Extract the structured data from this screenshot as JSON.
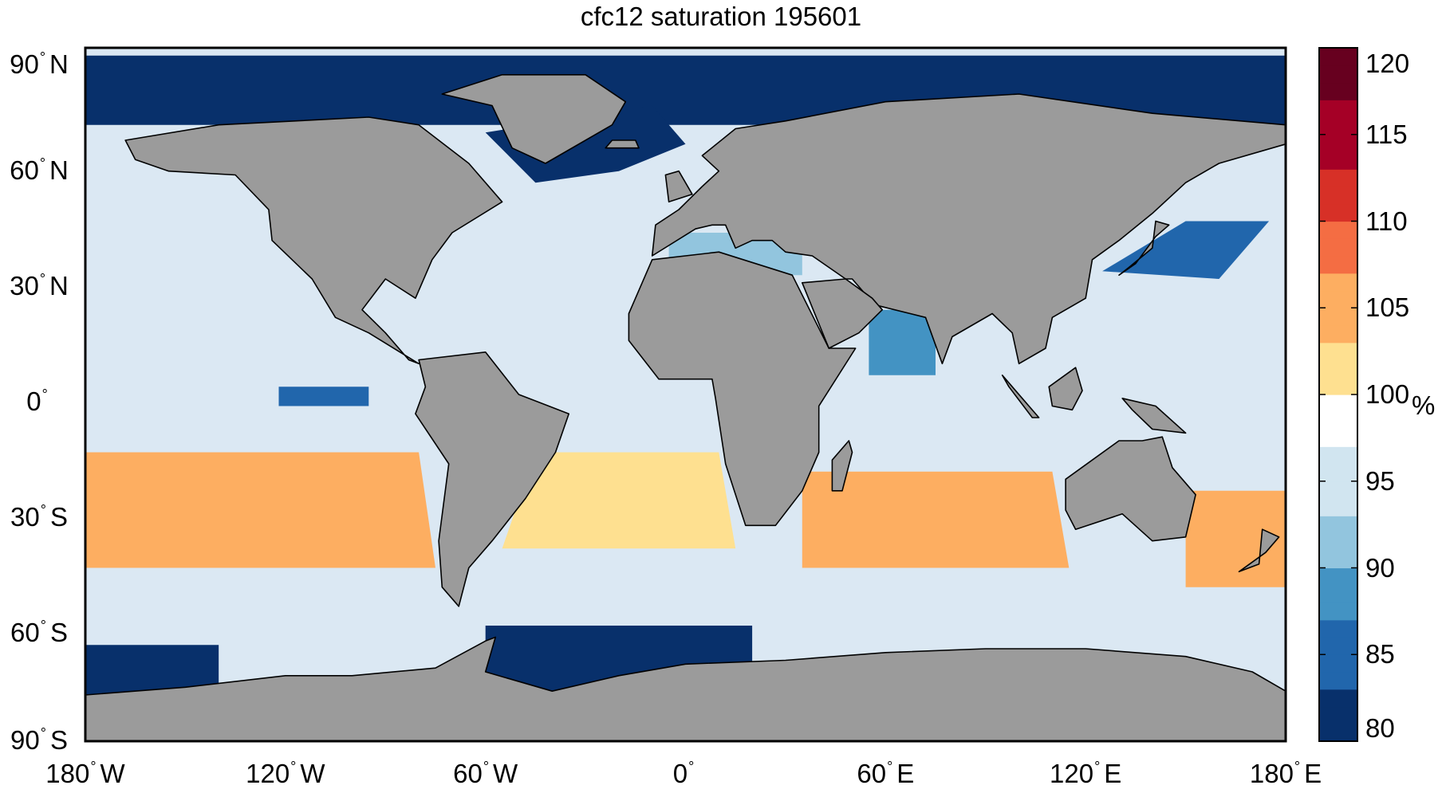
{
  "title": "cfc12 saturation 195601",
  "map": {
    "ocean_base": "#dbe8f3",
    "land": "#9b9b9b",
    "y_ticks": [
      {
        "lat": 90,
        "label": "90",
        "hemi": "N"
      },
      {
        "lat": 60,
        "label": "60",
        "hemi": "N"
      },
      {
        "lat": 30,
        "label": "30",
        "hemi": "N"
      },
      {
        "lat": 0,
        "label": "0",
        "hemi": ""
      },
      {
        "lat": -30,
        "label": "30",
        "hemi": "S"
      },
      {
        "lat": -60,
        "label": "60",
        "hemi": "S"
      },
      {
        "lat": -90,
        "label": "90",
        "hemi": "S"
      }
    ],
    "x_ticks": [
      {
        "lon": -180,
        "label": "180",
        "hemi": "W"
      },
      {
        "lon": -120,
        "label": "120",
        "hemi": "W"
      },
      {
        "lon": -60,
        "label": "60",
        "hemi": "W"
      },
      {
        "lon": 0,
        "label": "0",
        "hemi": ""
      },
      {
        "lon": 60,
        "label": "60",
        "hemi": "E"
      },
      {
        "lon": 120,
        "label": "120",
        "hemi": "E"
      },
      {
        "lon": 180,
        "label": "180",
        "hemi": "E"
      }
    ]
  },
  "colorbar": {
    "min": 80,
    "max": 120,
    "unit": "%",
    "ticks": [
      120,
      115,
      110,
      105,
      100,
      95,
      90,
      85,
      80
    ],
    "colors_low_to_high": [
      "#08306b",
      "#2166ac",
      "#4393c3",
      "#92c5de",
      "#d1e5f0",
      "#ffffff",
      "#fee090",
      "#fdae61",
      "#f46d43",
      "#d73027",
      "#a50026",
      "#67001f"
    ]
  },
  "regions": [
    {
      "name": "arctic-ocean",
      "value": 80,
      "polygon": [
        [
          -180,
          88
        ],
        [
          180,
          88
        ],
        [
          180,
          70
        ],
        [
          -180,
          70
        ]
      ]
    },
    {
      "name": "north-atlantic-deep",
      "value": 82,
      "polygon": [
        [
          -60,
          68
        ],
        [
          -10,
          75
        ],
        [
          0,
          65
        ],
        [
          -20,
          58
        ],
        [
          -45,
          55
        ]
      ]
    },
    {
      "name": "north-pacific-west",
      "value": 86,
      "polygon": [
        [
          125,
          32
        ],
        [
          150,
          45
        ],
        [
          175,
          45
        ],
        [
          160,
          30
        ]
      ]
    },
    {
      "name": "equatorial-pacific-low",
      "value": 84,
      "polygon": [
        [
          -122,
          2
        ],
        [
          -95,
          2
        ],
        [
          -95,
          -3
        ],
        [
          -122,
          -3
        ]
      ]
    },
    {
      "name": "south-pacific-high",
      "value": 104,
      "polygon": [
        [
          -180,
          -15
        ],
        [
          -80,
          -15
        ],
        [
          -75,
          -45
        ],
        [
          -180,
          -45
        ]
      ]
    },
    {
      "name": "south-atlantic-high",
      "value": 103,
      "polygon": [
        [
          -45,
          -15
        ],
        [
          10,
          -15
        ],
        [
          15,
          -40
        ],
        [
          -55,
          -40
        ]
      ]
    },
    {
      "name": "south-indian-high",
      "value": 104,
      "polygon": [
        [
          35,
          -20
        ],
        [
          110,
          -20
        ],
        [
          115,
          -45
        ],
        [
          35,
          -45
        ]
      ]
    },
    {
      "name": "tasman-high",
      "value": 105,
      "polygon": [
        [
          150,
          -25
        ],
        [
          180,
          -25
        ],
        [
          180,
          -50
        ],
        [
          150,
          -50
        ]
      ]
    },
    {
      "name": "weddell-sea",
      "value": 80,
      "polygon": [
        [
          -60,
          -60
        ],
        [
          20,
          -60
        ],
        [
          20,
          -78
        ],
        [
          -60,
          -78
        ]
      ]
    },
    {
      "name": "ross-sea",
      "value": 81,
      "polygon": [
        [
          -180,
          -65
        ],
        [
          -140,
          -65
        ],
        [
          -140,
          -80
        ],
        [
          -180,
          -80
        ]
      ]
    },
    {
      "name": "arabian-sea",
      "value": 88,
      "polygon": [
        [
          55,
          22
        ],
        [
          75,
          22
        ],
        [
          75,
          5
        ],
        [
          55,
          5
        ]
      ]
    },
    {
      "name": "mediterranean",
      "value": 91,
      "polygon": [
        [
          -5,
          42
        ],
        [
          35,
          42
        ],
        [
          35,
          31
        ],
        [
          -5,
          31
        ]
      ]
    }
  ],
  "land": [
    {
      "name": "north-america",
      "polygon": [
        [
          -168,
          66
        ],
        [
          -140,
          70
        ],
        [
          -95,
          72
        ],
        [
          -80,
          70
        ],
        [
          -65,
          60
        ],
        [
          -55,
          50
        ],
        [
          -70,
          42
        ],
        [
          -76,
          35
        ],
        [
          -81,
          25
        ],
        [
          -90,
          30
        ],
        [
          -97,
          22
        ],
        [
          -90,
          16
        ],
        [
          -83,
          9
        ],
        [
          -80,
          8
        ],
        [
          -95,
          16
        ],
        [
          -105,
          20
        ],
        [
          -112,
          30
        ],
        [
          -124,
          40
        ],
        [
          -125,
          48
        ],
        [
          -135,
          57
        ],
        [
          -155,
          58
        ],
        [
          -165,
          61
        ]
      ]
    },
    {
      "name": "greenland",
      "polygon": [
        [
          -73,
          78
        ],
        [
          -55,
          83
        ],
        [
          -30,
          83
        ],
        [
          -18,
          76
        ],
        [
          -22,
          70
        ],
        [
          -42,
          60
        ],
        [
          -52,
          64
        ],
        [
          -58,
          75
        ]
      ]
    },
    {
      "name": "south-america",
      "polygon": [
        [
          -80,
          9
        ],
        [
          -60,
          11
        ],
        [
          -50,
          0
        ],
        [
          -35,
          -5
        ],
        [
          -39,
          -15
        ],
        [
          -48,
          -27
        ],
        [
          -58,
          -38
        ],
        [
          -65,
          -45
        ],
        [
          -68,
          -55
        ],
        [
          -73,
          -50
        ],
        [
          -74,
          -38
        ],
        [
          -71,
          -18
        ],
        [
          -81,
          -5
        ],
        [
          -78,
          2
        ]
      ]
    },
    {
      "name": "eurasia",
      "polygon": [
        [
          -10,
          36
        ],
        [
          -9,
          44
        ],
        [
          -2,
          48
        ],
        [
          5,
          54
        ],
        [
          10,
          58
        ],
        [
          5,
          62
        ],
        [
          15,
          69
        ],
        [
          30,
          71
        ],
        [
          60,
          76
        ],
        [
          100,
          78
        ],
        [
          140,
          73
        ],
        [
          180,
          70
        ],
        [
          180,
          65
        ],
        [
          160,
          60
        ],
        [
          150,
          55
        ],
        [
          140,
          47
        ],
        [
          130,
          40
        ],
        [
          122,
          35
        ],
        [
          120,
          25
        ],
        [
          110,
          20
        ],
        [
          108,
          12
        ],
        [
          100,
          8
        ],
        [
          98,
          16
        ],
        [
          92,
          21
        ],
        [
          80,
          15
        ],
        [
          77,
          8
        ],
        [
          72,
          20
        ],
        [
          58,
          23
        ],
        [
          55,
          25
        ],
        [
          50,
          30
        ],
        [
          48,
          30
        ],
        [
          38,
          36
        ],
        [
          30,
          37
        ],
        [
          26,
          40
        ],
        [
          20,
          40
        ],
        [
          15,
          38
        ],
        [
          12,
          44
        ],
        [
          8,
          44
        ],
        [
          3,
          43
        ]
      ]
    },
    {
      "name": "africa",
      "polygon": [
        [
          -17,
          21
        ],
        [
          -10,
          35
        ],
        [
          10,
          37
        ],
        [
          32,
          31
        ],
        [
          43,
          12
        ],
        [
          51,
          12
        ],
        [
          40,
          -3
        ],
        [
          40,
          -15
        ],
        [
          35,
          -25
        ],
        [
          27,
          -34
        ],
        [
          18,
          -34
        ],
        [
          12,
          -18
        ],
        [
          9,
          -1
        ],
        [
          8,
          4
        ],
        [
          -8,
          4
        ],
        [
          -17,
          14
        ]
      ]
    },
    {
      "name": "arabia",
      "polygon": [
        [
          35,
          29
        ],
        [
          48,
          30
        ],
        [
          56,
          25
        ],
        [
          59,
          22
        ],
        [
          52,
          16
        ],
        [
          43,
          12
        ]
      ]
    },
    {
      "name": "australia",
      "polygon": [
        [
          114,
          -22
        ],
        [
          122,
          -17
        ],
        [
          130,
          -12
        ],
        [
          137,
          -12
        ],
        [
          143,
          -11
        ],
        [
          146,
          -19
        ],
        [
          153,
          -26
        ],
        [
          150,
          -37
        ],
        [
          140,
          -38
        ],
        [
          131,
          -31
        ],
        [
          117,
          -35
        ],
        [
          114,
          -30
        ]
      ]
    },
    {
      "name": "antarctica",
      "polygon": [
        [
          -180,
          -78
        ],
        [
          -150,
          -76
        ],
        [
          -120,
          -73
        ],
        [
          -100,
          -73
        ],
        [
          -75,
          -71
        ],
        [
          -60,
          -64
        ],
        [
          -57,
          -63
        ],
        [
          -60,
          -72
        ],
        [
          -40,
          -77
        ],
        [
          -20,
          -73
        ],
        [
          0,
          -70
        ],
        [
          30,
          -69
        ],
        [
          60,
          -67
        ],
        [
          90,
          -66
        ],
        [
          120,
          -66
        ],
        [
          150,
          -68
        ],
        [
          170,
          -72
        ],
        [
          180,
          -77
        ],
        [
          180,
          -90
        ],
        [
          -180,
          -90
        ]
      ]
    },
    {
      "name": "madagascar",
      "polygon": [
        [
          44,
          -25
        ],
        [
          47,
          -25
        ],
        [
          50,
          -15
        ],
        [
          49,
          -12
        ],
        [
          44,
          -17
        ]
      ]
    },
    {
      "name": "borneo",
      "polygon": [
        [
          109,
          2
        ],
        [
          117,
          7
        ],
        [
          119,
          1
        ],
        [
          116,
          -4
        ],
        [
          110,
          -3
        ]
      ]
    },
    {
      "name": "sumatra",
      "polygon": [
        [
          95,
          5
        ],
        [
          106,
          -6
        ],
        [
          104,
          -6
        ],
        [
          97,
          2
        ]
      ]
    },
    {
      "name": "new-guinea",
      "polygon": [
        [
          131,
          -1
        ],
        [
          141,
          -3
        ],
        [
          150,
          -10
        ],
        [
          140,
          -9
        ],
        [
          134,
          -4
        ]
      ]
    },
    {
      "name": "japan",
      "polygon": [
        [
          130,
          31
        ],
        [
          135,
          34
        ],
        [
          141,
          41
        ],
        [
          145,
          44
        ],
        [
          141,
          45
        ],
        [
          140,
          38
        ],
        [
          133,
          33
        ]
      ]
    },
    {
      "name": "uk",
      "polygon": [
        [
          -5,
          50
        ],
        [
          2,
          52
        ],
        [
          -2,
          58
        ],
        [
          -6,
          57
        ]
      ]
    },
    {
      "name": "iceland",
      "polygon": [
        [
          -24,
          64
        ],
        [
          -14,
          64
        ],
        [
          -15,
          66
        ],
        [
          -22,
          66
        ]
      ]
    },
    {
      "name": "new-zealand",
      "polygon": [
        [
          166,
          -46
        ],
        [
          174,
          -41
        ],
        [
          178,
          -37
        ],
        [
          173,
          -35
        ],
        [
          172,
          -44
        ]
      ]
    }
  ]
}
